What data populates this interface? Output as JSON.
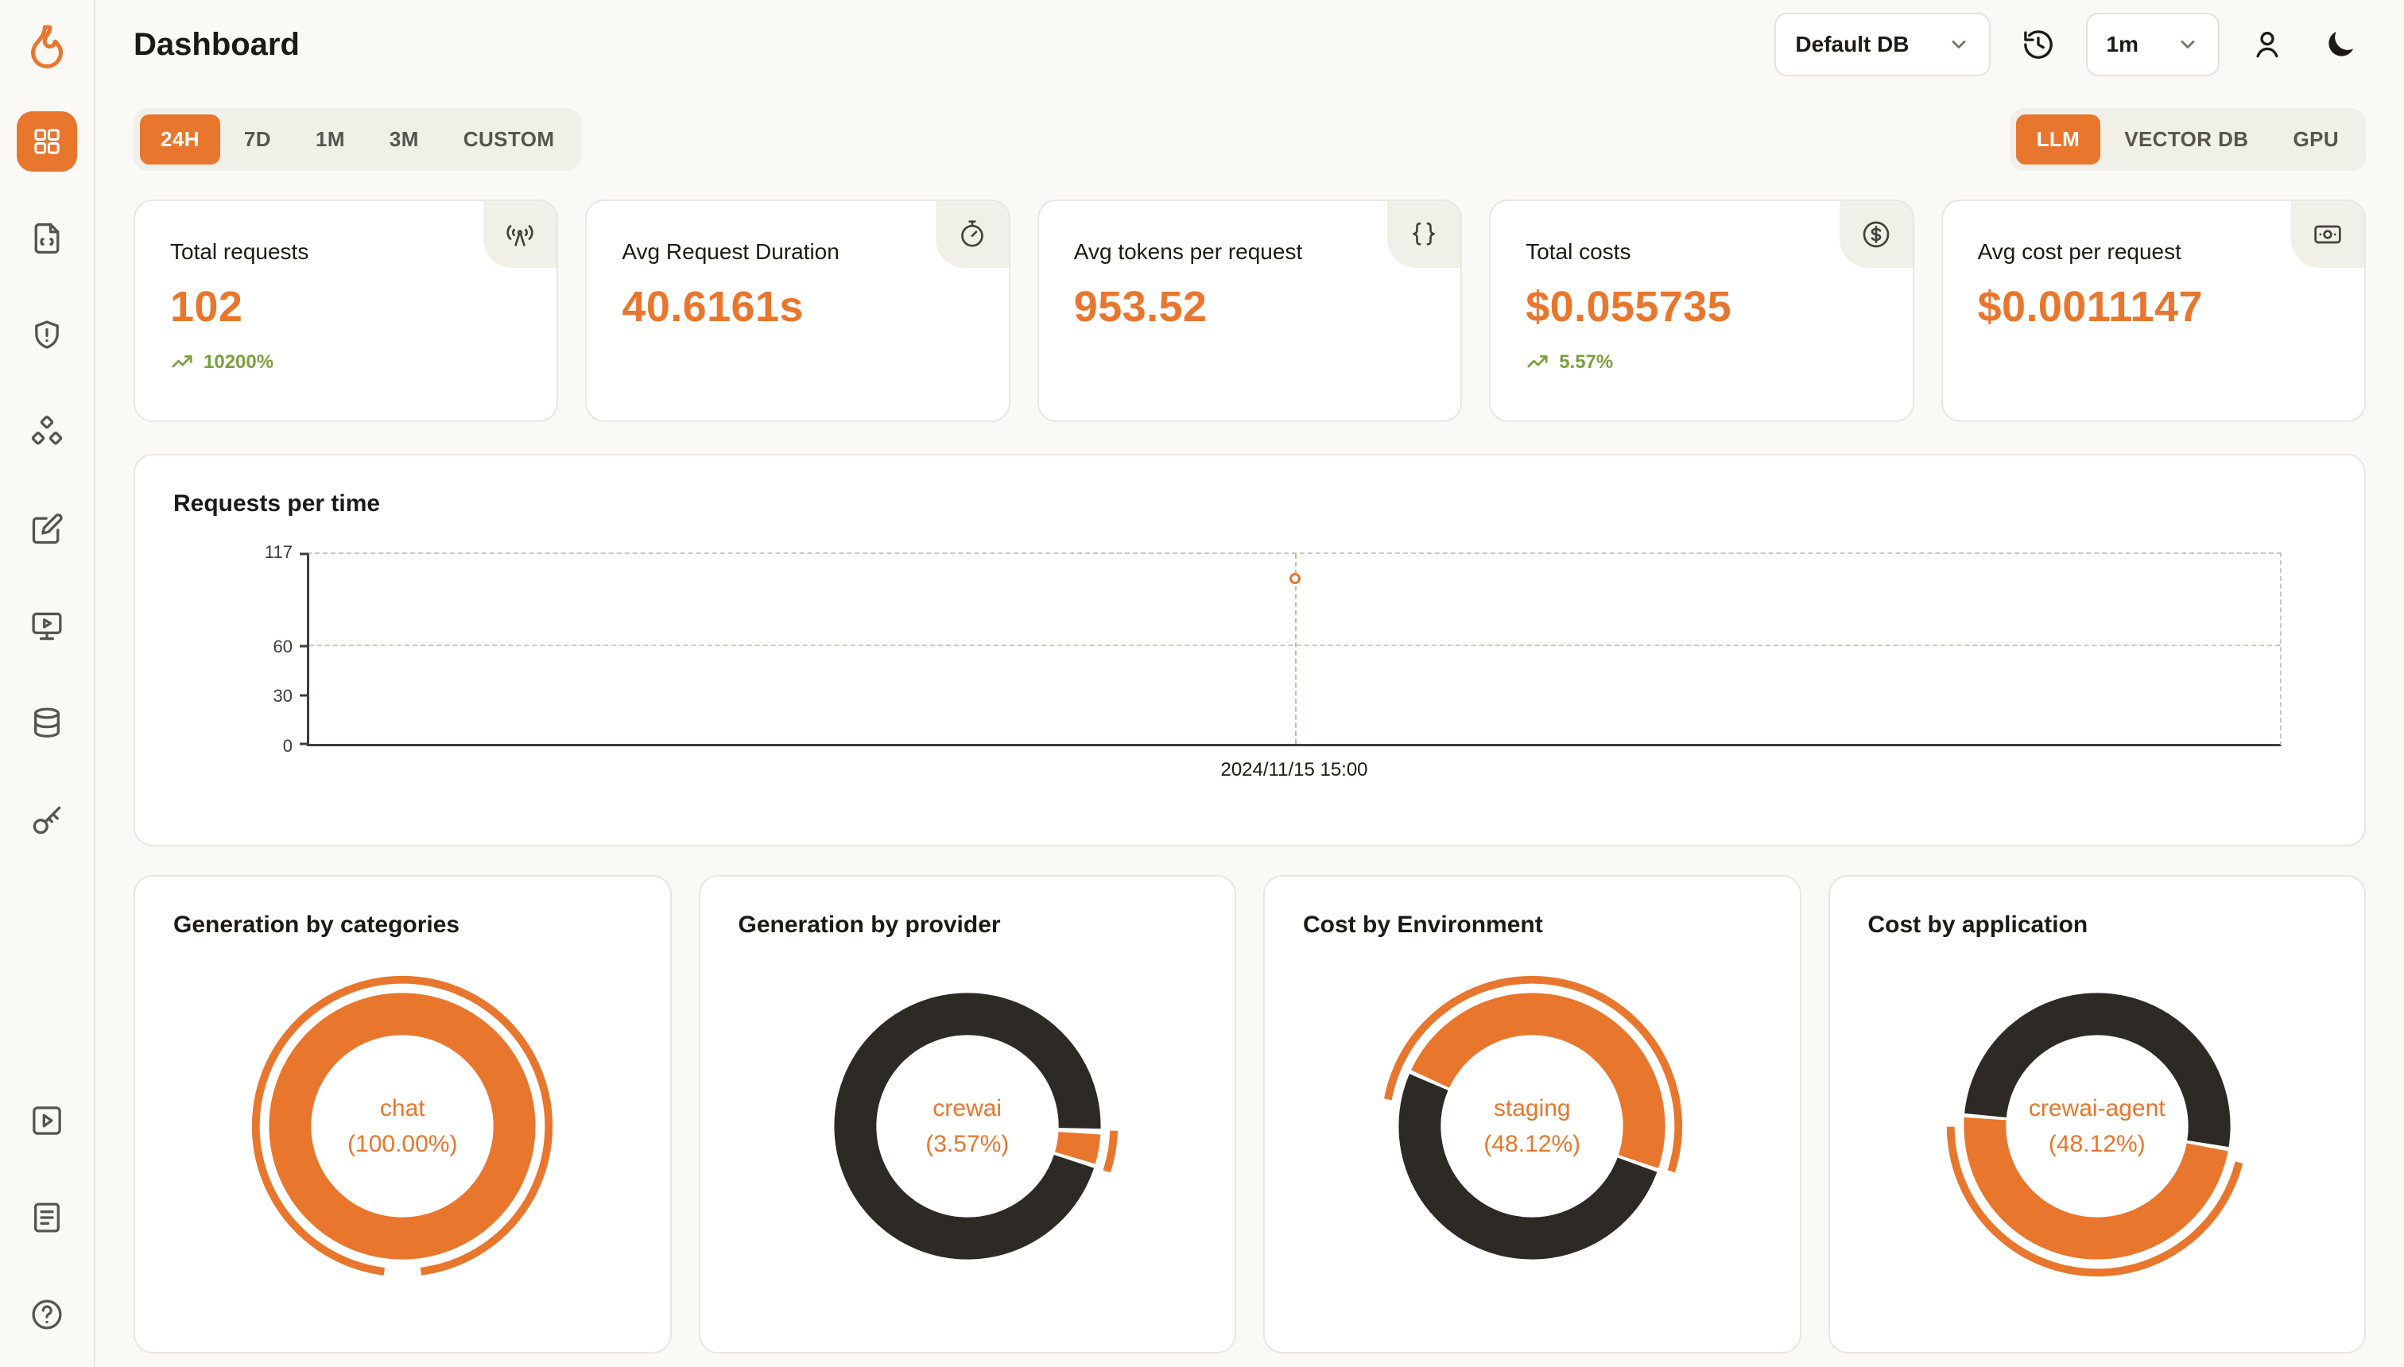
{
  "colors": {
    "accent": "#E8762D",
    "dark": "#2D2A26",
    "green": "#7CA03E",
    "badge_bg": "#F0EFE8"
  },
  "header": {
    "title": "Dashboard",
    "db_select": {
      "value": "Default DB"
    },
    "interval_select": {
      "value": "1m"
    }
  },
  "sidebar": {
    "items": [
      "dashboard",
      "requests",
      "exceptions",
      "prompt-hub",
      "vault",
      "playground",
      "databases",
      "api-keys"
    ],
    "bottom_items": [
      "getting-started",
      "documentation",
      "support"
    ]
  },
  "time_tabs": {
    "items": [
      {
        "label": "24H",
        "active": true
      },
      {
        "label": "7D",
        "active": false
      },
      {
        "label": "1M",
        "active": false
      },
      {
        "label": "3M",
        "active": false
      },
      {
        "label": "CUSTOM",
        "active": false
      }
    ]
  },
  "scope_tabs": {
    "items": [
      {
        "label": "LLM",
        "active": true
      },
      {
        "label": "VECTOR DB",
        "active": false
      },
      {
        "label": "GPU",
        "active": false
      }
    ]
  },
  "stats": [
    {
      "label": "Total requests",
      "value": "102",
      "delta": "10200%",
      "icon": "radio-tower-icon"
    },
    {
      "label": "Avg Request Duration",
      "value": "40.6161s",
      "icon": "timer-icon"
    },
    {
      "label": "Avg tokens per request",
      "value": "953.52",
      "icon": "braces-icon"
    },
    {
      "label": "Total costs",
      "value": "$0.055735",
      "delta": "5.57%",
      "icon": "circle-dollar-icon"
    },
    {
      "label": "Avg cost per request",
      "value": "$0.0011147",
      "icon": "banknote-icon"
    }
  ],
  "chart_data": [
    {
      "type": "line",
      "title": "Requests per time",
      "x": [
        "2024/11/15 15:00"
      ],
      "series": [
        {
          "name": "Requests",
          "values": [
            102
          ]
        }
      ],
      "y_ticks": [
        0,
        30,
        60,
        117
      ],
      "ylim": [
        0,
        117
      ],
      "grid_ticks": [
        60
      ],
      "point_x_fraction": 0.5,
      "legend": false
    },
    {
      "type": "pie",
      "title": "Generation by categories",
      "center_label": "chat",
      "center_pct": "(100.00%)",
      "slices": [
        {
          "label": "chat",
          "value": 100,
          "color": "accent",
          "start": 25,
          "span": 100
        }
      ],
      "outer_arc": {
        "start": 27,
        "span": 96
      }
    },
    {
      "type": "pie",
      "title": "Generation by provider",
      "center_label": "crewai",
      "center_pct": "(3.57%)",
      "slices": [
        {
          "label": "crewai",
          "value": 3.57,
          "color": "accent",
          "start": 1,
          "span": 3.57
        },
        {
          "label": "other",
          "value": 96.43,
          "color": "dark",
          "start": 5.1,
          "span": 95.2
        }
      ],
      "outer_arc": {
        "start": 0.5,
        "span": 4.5
      }
    },
    {
      "type": "pie",
      "title": "Cost by Environment",
      "center_label": "staging",
      "center_pct": "(48.12%)",
      "slices": [
        {
          "label": "staging",
          "value": 48.12,
          "color": "accent",
          "start": 57,
          "span": 48.12
        },
        {
          "label": "other",
          "value": 51.88,
          "color": "dark",
          "start": 105.6,
          "span": 50.9
        }
      ],
      "outer_arc": {
        "start": 53,
        "span": 52
      }
    },
    {
      "type": "pie",
      "title": "Cost by application",
      "center_label": "crewai-agent",
      "center_pct": "(48.12%)",
      "slices": [
        {
          "label": "crewai-agent",
          "value": 48.12,
          "color": "accent",
          "start": 3,
          "span": 48.12
        },
        {
          "label": "other",
          "value": 51.88,
          "color": "dark",
          "start": 51.6,
          "span": 50.9
        }
      ],
      "outer_arc": {
        "start": 4,
        "span": 46
      }
    }
  ]
}
